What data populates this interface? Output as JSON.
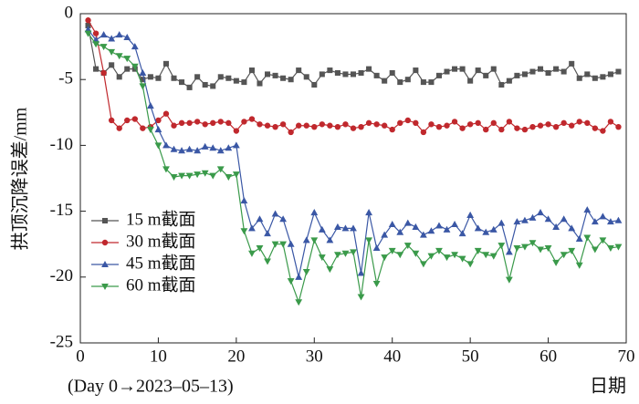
{
  "chart_data": {
    "type": "line",
    "x_label": "日期",
    "y_label": "拱顶沉降误差/mm",
    "note": "(Day 0→2023–05–13)",
    "x": [
      1,
      2,
      3,
      4,
      5,
      6,
      7,
      8,
      9,
      10,
      11,
      12,
      13,
      14,
      15,
      16,
      17,
      18,
      19,
      20,
      21,
      22,
      23,
      24,
      25,
      26,
      27,
      28,
      29,
      30,
      31,
      32,
      33,
      34,
      35,
      36,
      37,
      38,
      39,
      40,
      41,
      42,
      43,
      44,
      45,
      46,
      47,
      48,
      49,
      50,
      51,
      52,
      53,
      54,
      55,
      56,
      57,
      58,
      59,
      60,
      61,
      62,
      63,
      64,
      65,
      66,
      67,
      68,
      69
    ],
    "series": [
      {
        "name": "15 m截面",
        "color": "#555555",
        "marker": "square",
        "values": [
          -0.9,
          -4.2,
          -4.5,
          -3.9,
          -4.8,
          -4.2,
          -4.2,
          -5.0,
          -4.8,
          -4.9,
          -3.8,
          -4.9,
          -5.2,
          -5.6,
          -4.8,
          -5.4,
          -5.5,
          -4.8,
          -4.9,
          -5.1,
          -5.2,
          -4.3,
          -5.3,
          -4.6,
          -4.7,
          -4.9,
          -5.0,
          -4.3,
          -4.8,
          -5.4,
          -4.6,
          -4.3,
          -4.5,
          -4.6,
          -4.6,
          -4.5,
          -4.2,
          -4.7,
          -5.1,
          -4.5,
          -5.2,
          -5.0,
          -4.3,
          -5.2,
          -5.2,
          -4.7,
          -4.4,
          -4.2,
          -4.2,
          -5.1,
          -4.3,
          -4.7,
          -4.2,
          -5.4,
          -5.1,
          -4.7,
          -4.6,
          -4.4,
          -4.2,
          -4.5,
          -4.2,
          -4.4,
          -3.8,
          -4.9,
          -4.6,
          -4.9,
          -4.8,
          -4.6,
          -4.4
        ]
      },
      {
        "name": "30 m截面",
        "color": "#c0282d",
        "marker": "circle",
        "values": [
          -0.5,
          -1.5,
          -4.5,
          -8.1,
          -8.7,
          -8.1,
          -8.0,
          -8.7,
          -8.6,
          -8.1,
          -7.6,
          -8.5,
          -8.3,
          -8.3,
          -8.2,
          -8.4,
          -8.3,
          -8.2,
          -8.3,
          -8.9,
          -8.2,
          -8.0,
          -8.4,
          -8.5,
          -8.6,
          -8.4,
          -9.0,
          -8.5,
          -8.5,
          -8.6,
          -8.4,
          -8.5,
          -8.6,
          -8.4,
          -8.7,
          -8.6,
          -8.3,
          -8.4,
          -8.5,
          -8.8,
          -8.3,
          -8.1,
          -8.3,
          -9.0,
          -8.4,
          -8.6,
          -8.5,
          -8.2,
          -8.7,
          -8.4,
          -8.3,
          -8.8,
          -8.3,
          -8.8,
          -8.2,
          -8.7,
          -8.8,
          -8.6,
          -8.5,
          -8.4,
          -8.6,
          -8.3,
          -8.5,
          -8.2,
          -8.3,
          -8.7,
          -8.9,
          -8.2,
          -8.6
        ]
      },
      {
        "name": "45 m截面",
        "color": "#3a57a5",
        "marker": "triangle-up",
        "values": [
          -1.2,
          -2.0,
          -1.6,
          -1.9,
          -1.6,
          -1.8,
          -2.5,
          -4.5,
          -7.0,
          -8.8,
          -10.0,
          -10.3,
          -10.4,
          -10.3,
          -10.4,
          -10.1,
          -10.2,
          -10.4,
          -10.2,
          -10.0,
          -14.2,
          -16.3,
          -15.6,
          -16.7,
          -15.2,
          -15.6,
          -17.5,
          -20.0,
          -17.2,
          -15.1,
          -16.4,
          -17.2,
          -16.2,
          -16.3,
          -16.3,
          -19.7,
          -15.1,
          -17.8,
          -16.8,
          -16.0,
          -16.6,
          -15.9,
          -16.2,
          -16.8,
          -16.5,
          -16.1,
          -16.4,
          -16.0,
          -16.7,
          -15.3,
          -16.3,
          -16.6,
          -16.4,
          -15.9,
          -18.1,
          -15.8,
          -15.7,
          -15.5,
          -15.1,
          -15.6,
          -16.2,
          -15.6,
          -16.3,
          -17.1,
          -14.9,
          -15.8,
          -15.4,
          -15.8,
          -15.7
        ]
      },
      {
        "name": "60 m截面",
        "color": "#3a9a4a",
        "marker": "triangle-down",
        "values": [
          -1.5,
          -2.3,
          -2.5,
          -2.9,
          -3.2,
          -3.4,
          -4.0,
          -5.5,
          -8.8,
          -10.0,
          -11.8,
          -12.4,
          -12.3,
          -12.3,
          -12.2,
          -12.1,
          -12.3,
          -11.8,
          -12.4,
          -12.2,
          -16.5,
          -18.2,
          -17.8,
          -18.8,
          -17.5,
          -17.5,
          -20.3,
          -21.9,
          -19.6,
          -17.2,
          -18.5,
          -19.4,
          -18.3,
          -18.2,
          -18.1,
          -21.5,
          -17.2,
          -20.5,
          -18.5,
          -18.0,
          -18.3,
          -17.6,
          -18.2,
          -19.0,
          -18.4,
          -18.0,
          -18.5,
          -18.3,
          -18.6,
          -19.0,
          -18.0,
          -18.3,
          -18.4,
          -17.6,
          -20.2,
          -17.8,
          -17.7,
          -17.4,
          -17.9,
          -17.8,
          -18.9,
          -18.3,
          -18.0,
          -19.1,
          -17.0,
          -17.9,
          -17.2,
          -17.8,
          -17.7
        ]
      }
    ],
    "xlim": [
      0,
      70
    ],
    "xticks": [
      0,
      10,
      20,
      30,
      40,
      50,
      60,
      70
    ],
    "ylim": [
      -25,
      0
    ],
    "yticks": [
      -25,
      -20,
      -15,
      -10,
      -5,
      0
    ],
    "legend": "lower-left"
  }
}
